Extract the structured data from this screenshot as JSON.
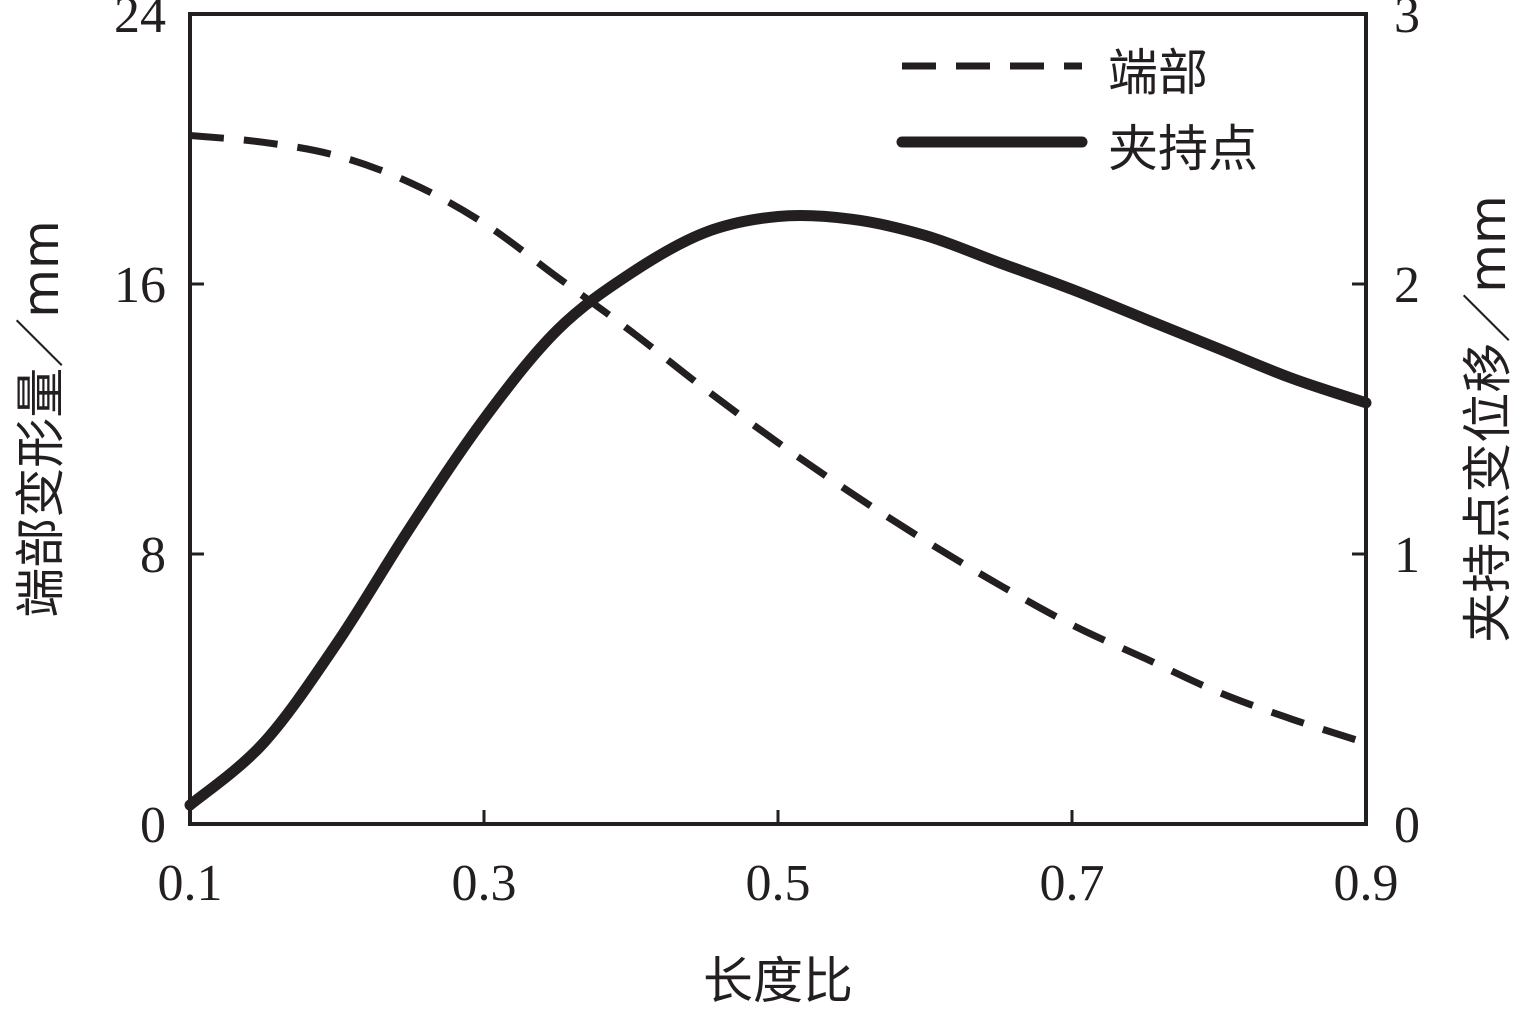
{
  "chart_data": {
    "type": "line",
    "xlabel": "长度比",
    "ylabel_left": "端部变形量／mm",
    "ylabel_right": "夹持点变位移／mm",
    "xlim": [
      0.1,
      0.9
    ],
    "ylim_left": [
      0,
      24
    ],
    "ylim_right": [
      0,
      3
    ],
    "x_ticks": [
      "0.1",
      "0.3",
      "0.5",
      "0.7",
      "0.9"
    ],
    "y_left_ticks": [
      "0",
      "8",
      "16",
      "24"
    ],
    "y_right_ticks": [
      "0",
      "1",
      "2",
      "3"
    ],
    "legend_position": "top-right",
    "grid": false,
    "series": [
      {
        "name": "端部",
        "axis": "left",
        "style": "dashed",
        "x": [
          0.1,
          0.15,
          0.2,
          0.25,
          0.3,
          0.35,
          0.4,
          0.45,
          0.5,
          0.55,
          0.6,
          0.65,
          0.7,
          0.75,
          0.8,
          0.85,
          0.9
        ],
        "y": [
          20.4,
          20.2,
          19.8,
          19.0,
          17.8,
          16.2,
          14.6,
          12.9,
          11.3,
          9.8,
          8.4,
          7.1,
          5.9,
          4.9,
          3.9,
          3.1,
          2.4
        ]
      },
      {
        "name": "夹持点",
        "axis": "right",
        "style": "solid",
        "x": [
          0.1,
          0.15,
          0.2,
          0.25,
          0.3,
          0.35,
          0.4,
          0.45,
          0.5,
          0.55,
          0.6,
          0.65,
          0.7,
          0.75,
          0.8,
          0.85,
          0.9
        ],
        "y": [
          0.07,
          0.3,
          0.67,
          1.1,
          1.5,
          1.83,
          2.04,
          2.19,
          2.25,
          2.24,
          2.18,
          2.08,
          1.98,
          1.87,
          1.76,
          1.65,
          1.56
        ]
      }
    ]
  }
}
